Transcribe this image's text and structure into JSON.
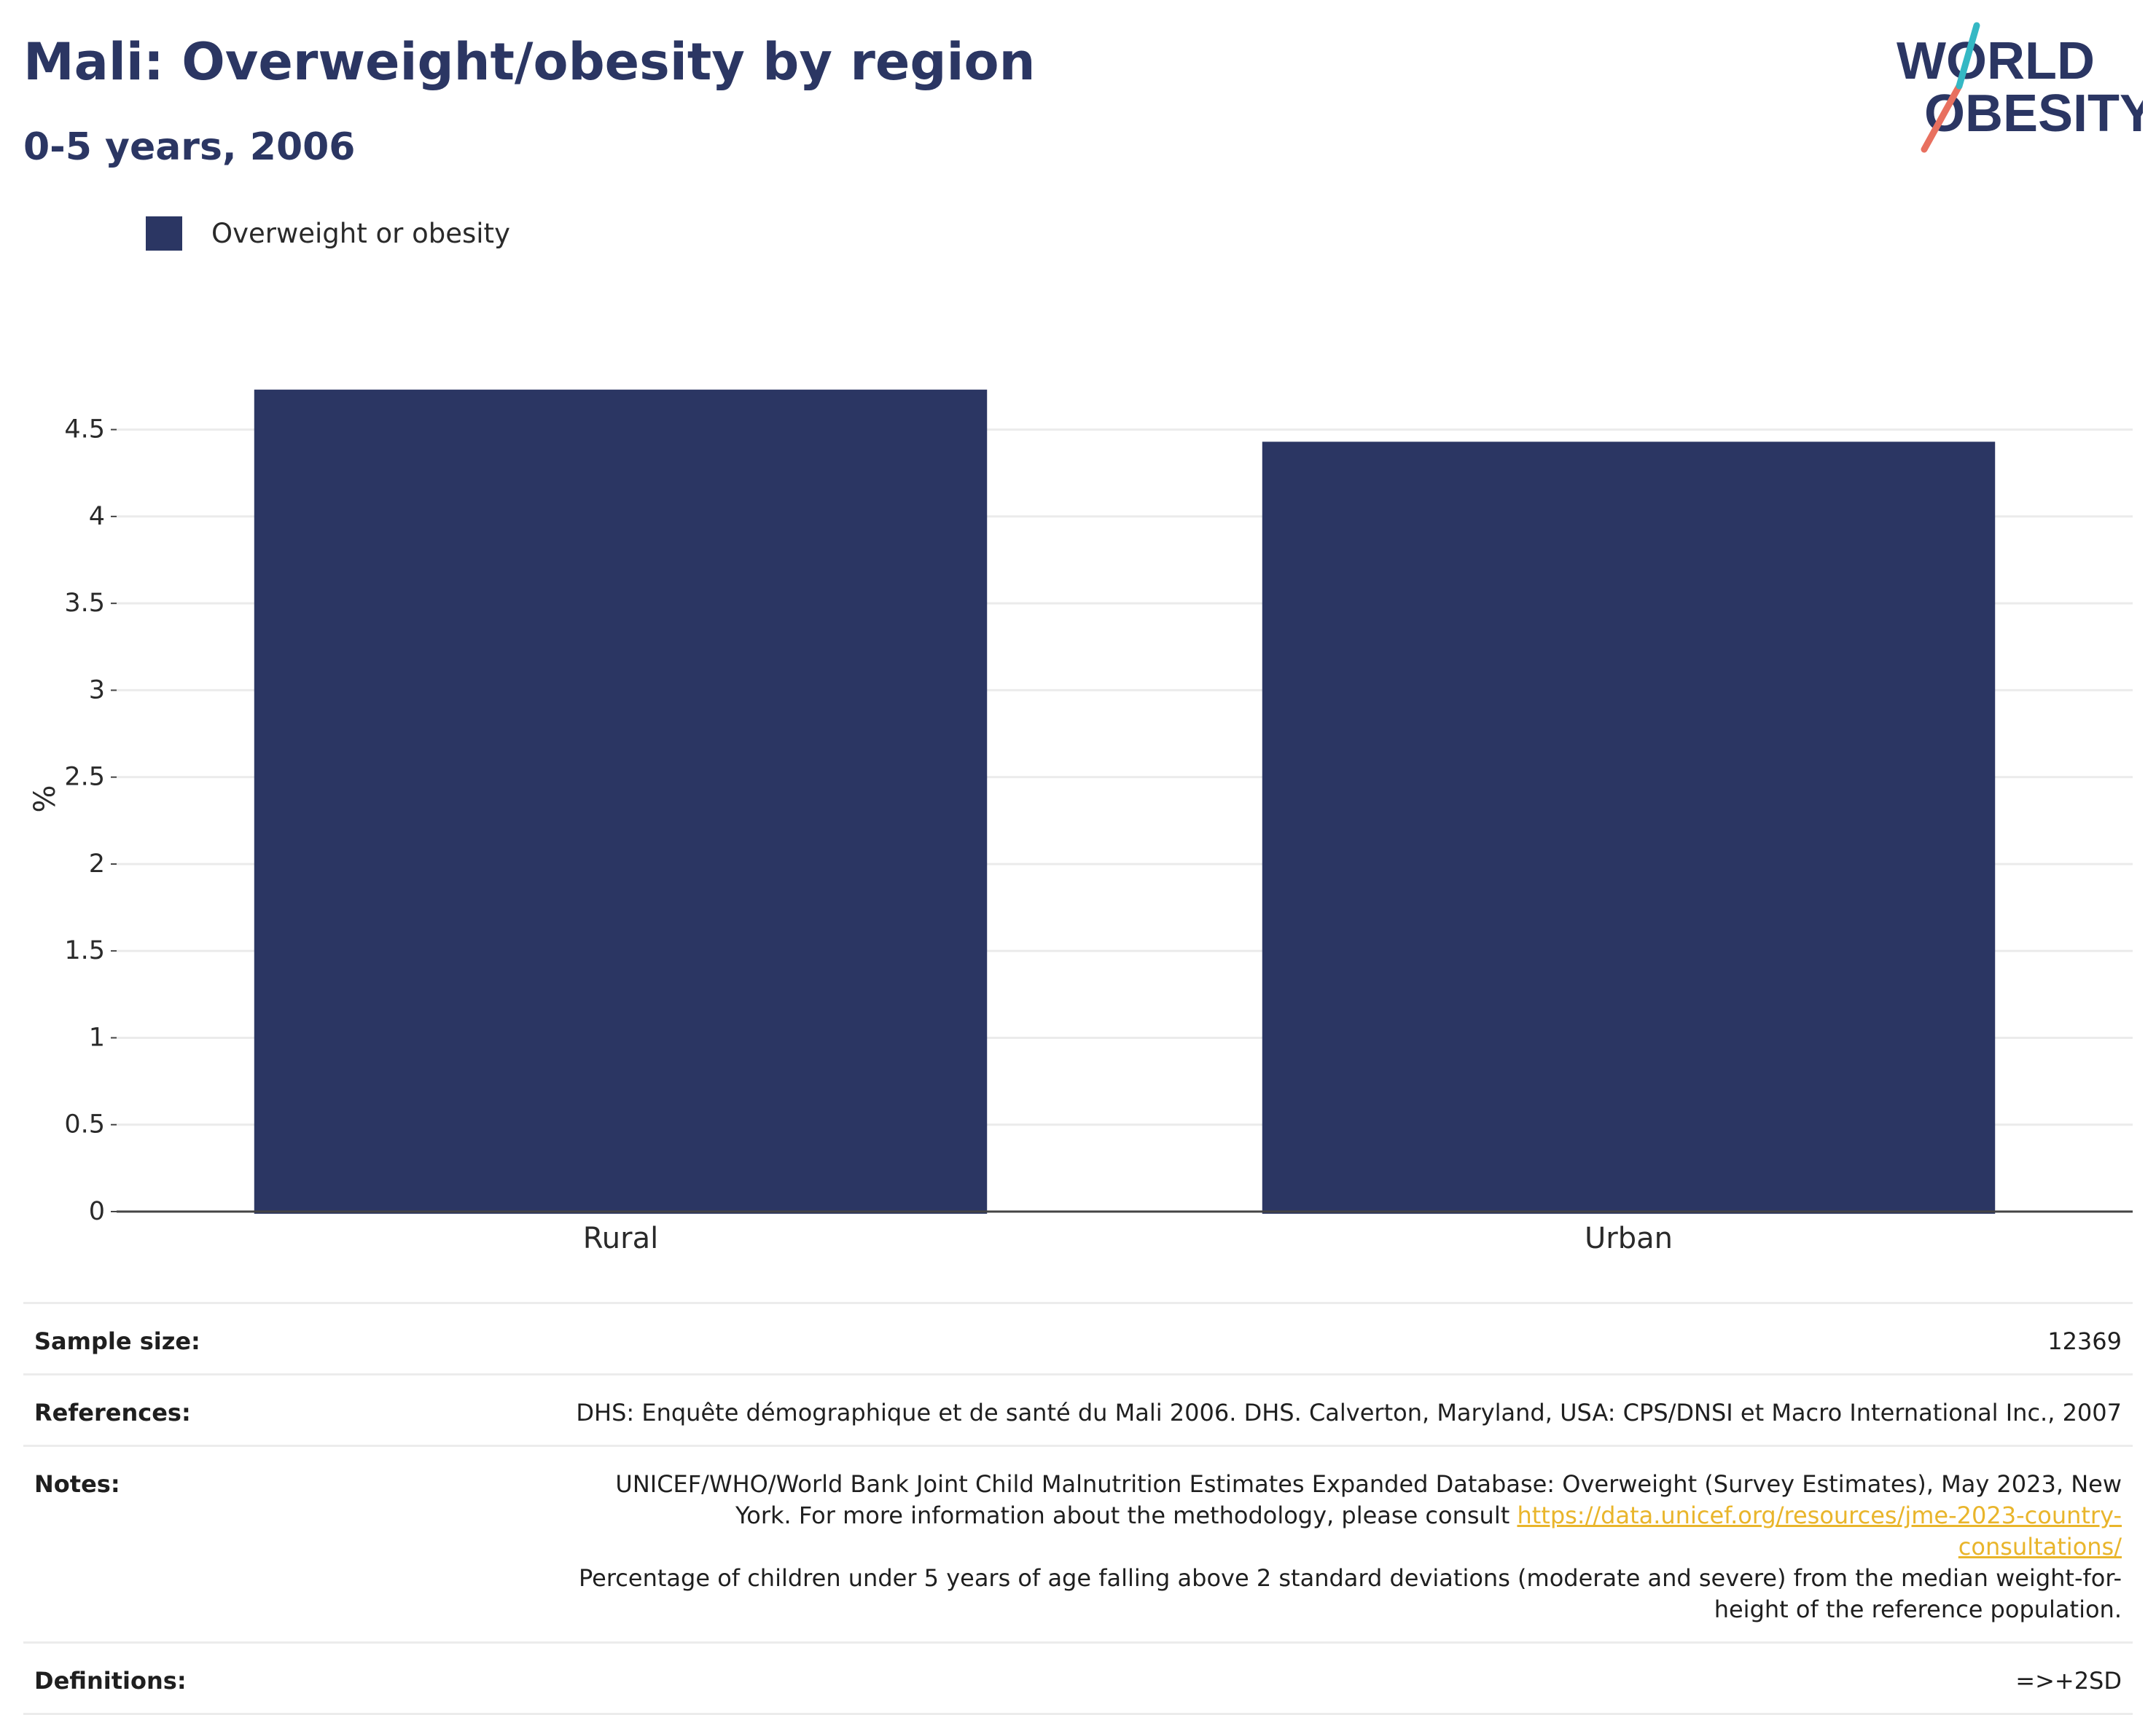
{
  "title": "Mali: Overweight/obesity by region",
  "subtitle": "0-5 years, 2006",
  "logo": {
    "line1": "WORLD",
    "line2": "OBESITY",
    "colors": {
      "text": "#2b3663",
      "slash_coral": "#e8705f",
      "slash_teal": "#35b8c4"
    }
  },
  "colors": {
    "bar": "#2b3663",
    "title": "#2b3663",
    "gridline": "#ebebeb",
    "axis": "#444444",
    "link": "#e9b52b"
  },
  "legend": {
    "position": "top-left",
    "items": [
      {
        "label": "Overweight or obesity",
        "color": "#2b3663"
      }
    ]
  },
  "chart_data": {
    "type": "bar",
    "title": "Mali: Overweight/obesity by region",
    "subtitle": "0-5 years, 2006",
    "xlabel": "",
    "ylabel": "%",
    "categories": [
      "Rural",
      "Urban"
    ],
    "series": [
      {
        "name": "Overweight or obesity",
        "values": [
          4.73,
          4.43
        ]
      }
    ],
    "ylim": [
      0,
      4.75
    ],
    "yticks": [
      0,
      0.5,
      1,
      1.5,
      2,
      2.5,
      3,
      3.5,
      4,
      4.5
    ],
    "ytick_labels": [
      "0",
      "0.5",
      "1",
      "1.5",
      "2",
      "2.5",
      "3",
      "3.5",
      "4",
      "4.5"
    ],
    "grid": true
  },
  "info": {
    "sample_size": {
      "label": "Sample size:",
      "value": "12369"
    },
    "references": {
      "label": "References:",
      "value": "DHS: Enquête démographique et de santé du Mali 2006. DHS. Calverton, Maryland, USA: CPS/DNSI et Macro International Inc., 2007"
    },
    "notes": {
      "label": "Notes:",
      "text_before_link": "UNICEF/WHO/World Bank Joint Child Malnutrition Estimates Expanded Database: Overweight (Survey Estimates), May 2023, New York. For more information about the methodology, please consult ",
      "link_text": "https://data.unicef.org/resources/jme-2023-country-consultations/",
      "text_after_link": "Percentage of children under 5 years of age falling above 2 standard deviations (moderate and severe) from the median weight-for-height of the reference population."
    },
    "definitions": {
      "label": "Definitions:",
      "value": "=>+2SD"
    }
  }
}
